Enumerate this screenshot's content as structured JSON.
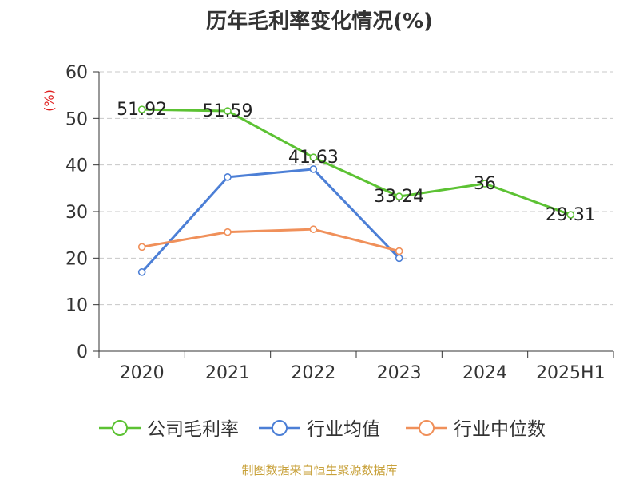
{
  "chart_data": {
    "type": "line",
    "title": "历年毛利率变化情况(%)",
    "ylabel": "(%)",
    "categories": [
      "2020",
      "2021",
      "2022",
      "2023",
      "2024",
      "2025H1"
    ],
    "ylim": [
      0,
      60
    ],
    "yticks": [
      "0",
      "10",
      "20",
      "30",
      "40",
      "50",
      "60"
    ],
    "grid": true,
    "legend_position": "bottom",
    "series": [
      {
        "name": "公司毛利率",
        "color": "#5cc233",
        "values": [
          51.92,
          51.59,
          41.63,
          33.24,
          36,
          29.31
        ],
        "labels": [
          "51.92",
          "51.59",
          "41.63",
          "33.24",
          "36",
          "29.31"
        ]
      },
      {
        "name": "行业均值",
        "color": "#4c7fd6",
        "values": [
          17.0,
          37.4,
          39.1,
          20.0,
          null,
          null
        ]
      },
      {
        "name": "行业中位数",
        "color": "#f0905a",
        "values": [
          22.4,
          25.6,
          26.2,
          21.5,
          null,
          null
        ]
      }
    ],
    "source": "制图数据来自恒生聚源数据库"
  }
}
